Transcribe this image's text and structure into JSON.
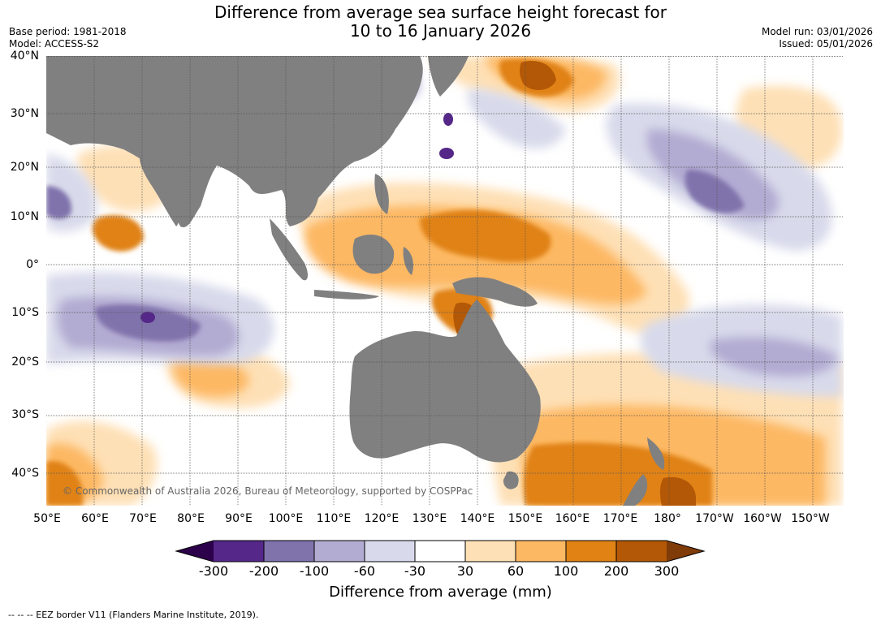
{
  "header": {
    "title_line1": "Difference from average sea surface height forecast for",
    "title_line2": "10 to 16 January 2026",
    "base_period": "Base period: 1981-2018",
    "model": "Model: ACCESS-S2",
    "model_run": "Model run: 03/01/2026",
    "issued": "Issued: 05/01/2026"
  },
  "map": {
    "latitude_labels": [
      "40°N",
      "30°N",
      "20°N",
      "10°N",
      "0°",
      "10°S",
      "20°S",
      "30°S",
      "40°S"
    ],
    "longitude_labels": [
      "50°E",
      "60°E",
      "70°E",
      "80°E",
      "90°E",
      "100°E",
      "110°E",
      "120°E",
      "130°E",
      "140°E",
      "150°E",
      "160°E",
      "170°E",
      "180°",
      "170°W",
      "160°W",
      "150°W"
    ],
    "copyright": "© Commonwealth of Australia 2026, Bureau of Meteorology, supported by COSPPac",
    "land_color": "#808080"
  },
  "colorbar": {
    "tick_labels": [
      "-300",
      "-200",
      "-100",
      "-60",
      "-30",
      "30",
      "60",
      "100",
      "200",
      "300"
    ],
    "colors": [
      "#2d004b",
      "#542788",
      "#8073ac",
      "#b2abd2",
      "#d8daeb",
      "#ffffff",
      "#fee0b6",
      "#fdb863",
      "#e08214",
      "#b35806",
      "#7f3b08"
    ],
    "title": "Difference from average (mm)"
  },
  "footnote": "--  --  -- EEZ border V11 (Flanders Marine Institute, 2019)."
}
